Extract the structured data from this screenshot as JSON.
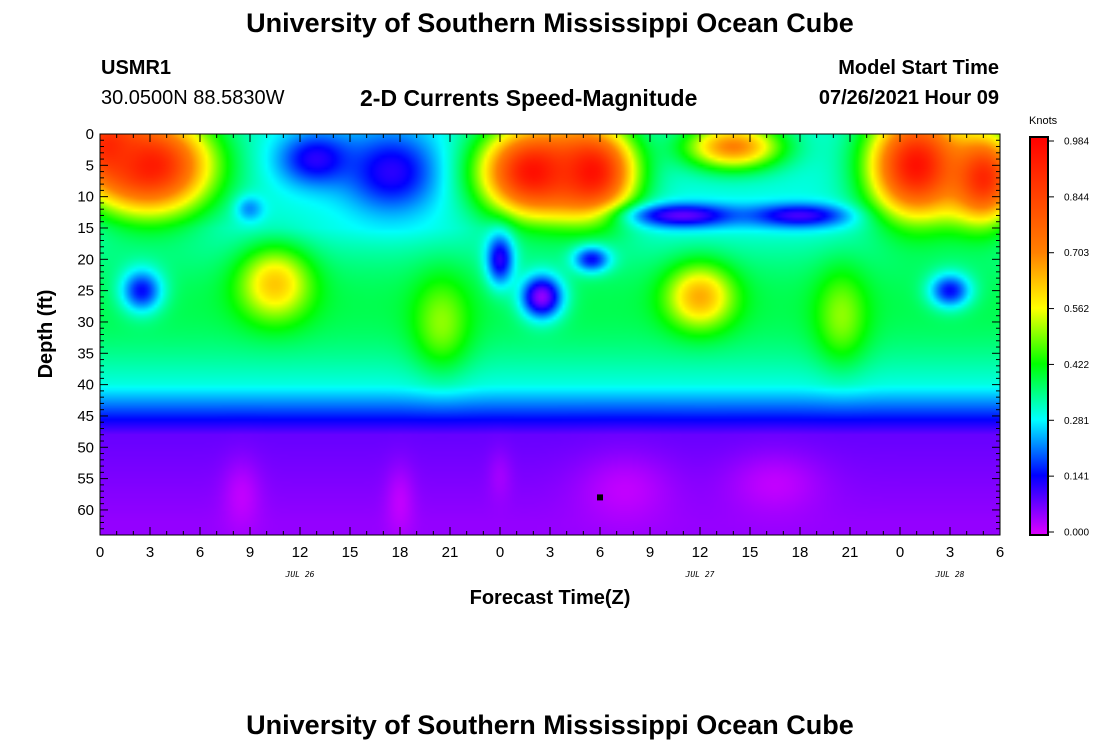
{
  "header": {
    "title_top": "University of Southern Mississippi Ocean Cube",
    "station": "USMR1",
    "coords": "30.0500N  88.5830W",
    "subtitle": "2-D Currents Speed-Magnitude",
    "model_label": "Model Start Time",
    "model_time": "07/26/2021 Hour 09",
    "title_bottom": "University of Southern Mississippi Ocean Cube"
  },
  "chart_data": {
    "type": "heatmap",
    "xlabel": "Forecast Time(Z)",
    "ylabel": "Depth (ft)",
    "x_tick_labels": [
      "0",
      "3",
      "6",
      "9",
      "12",
      "15",
      "18",
      "21",
      "0",
      "3",
      "6",
      "9",
      "12",
      "15",
      "18",
      "21",
      "0",
      "3",
      "6"
    ],
    "x_hours_range": [
      0,
      54
    ],
    "date_labels": [
      {
        "text": "JUL 26",
        "hour": 12
      },
      {
        "text": "JUL 27",
        "hour": 36
      },
      {
        "text": "JUL 28",
        "hour": 51
      }
    ],
    "y_ticks": [
      0,
      5,
      10,
      15,
      20,
      25,
      30,
      35,
      40,
      45,
      50,
      55,
      60
    ],
    "y_range": [
      0,
      64
    ],
    "colorbar": {
      "unit": "Knots",
      "ticks": [
        "0.984",
        "0.844",
        "0.703",
        "0.562",
        "0.422",
        "0.281",
        "0.141",
        "0.000"
      ],
      "range": [
        0,
        0.984
      ],
      "colors": [
        "#e000ff",
        "#0000ff",
        "#00ffff",
        "#00ff00",
        "#ffff00",
        "#ff8000",
        "#ff0000"
      ]
    },
    "marker": {
      "hour": 30,
      "depth": 58
    },
    "features": [
      {
        "hour": 3,
        "depth": 5,
        "value": 0.93,
        "sx": 2.6,
        "sy": 5.5
      },
      {
        "hour": 0.5,
        "depth": 2,
        "value": 0.9,
        "sx": 1.5,
        "sy": 4
      },
      {
        "hour": 13,
        "depth": 4,
        "value": 0.12,
        "sx": 1.6,
        "sy": 3
      },
      {
        "hour": 17.5,
        "depth": 6,
        "value": 0.12,
        "sx": 2,
        "sy": 4.5
      },
      {
        "hour": 9,
        "depth": 12,
        "value": 0.22,
        "sx": 0.6,
        "sy": 1.5
      },
      {
        "hour": 26,
        "depth": 6,
        "value": 0.95,
        "sx": 2.2,
        "sy": 5
      },
      {
        "hour": 29.5,
        "depth": 6,
        "value": 0.95,
        "sx": 1.8,
        "sy": 5
      },
      {
        "hour": 38,
        "depth": 2,
        "value": 0.7,
        "sx": 2,
        "sy": 2.5
      },
      {
        "hour": 35,
        "depth": 13,
        "value": 0.08,
        "sx": 2.2,
        "sy": 1.3
      },
      {
        "hour": 42,
        "depth": 13,
        "value": 0.1,
        "sx": 2.2,
        "sy": 1.3
      },
      {
        "hour": 49,
        "depth": 5,
        "value": 0.95,
        "sx": 2,
        "sy": 6
      },
      {
        "hour": 53,
        "depth": 7,
        "value": 0.9,
        "sx": 1.5,
        "sy": 5
      },
      {
        "hour": 2.5,
        "depth": 25,
        "value": 0.15,
        "sx": 0.9,
        "sy": 2.5
      },
      {
        "hour": 10.5,
        "depth": 24,
        "value": 0.62,
        "sx": 1.5,
        "sy": 4
      },
      {
        "hour": 20.5,
        "depth": 30,
        "value": 0.5,
        "sx": 1.2,
        "sy": 5
      },
      {
        "hour": 24,
        "depth": 20,
        "value": 0.12,
        "sx": 0.6,
        "sy": 3
      },
      {
        "hour": 26.5,
        "depth": 26,
        "value": 0.05,
        "sx": 0.9,
        "sy": 2.5
      },
      {
        "hour": 29.5,
        "depth": 20,
        "value": 0.15,
        "sx": 0.8,
        "sy": 1.5
      },
      {
        "hour": 36,
        "depth": 26,
        "value": 0.65,
        "sx": 1.4,
        "sy": 3.5
      },
      {
        "hour": 44.5,
        "depth": 29,
        "value": 0.5,
        "sx": 1.1,
        "sy": 5
      },
      {
        "hour": 51,
        "depth": 25,
        "value": 0.15,
        "sx": 0.9,
        "sy": 2
      },
      {
        "hour": 8.5,
        "depth": 58,
        "value": 0.02,
        "sx": 0.8,
        "sy": 4
      },
      {
        "hour": 18,
        "depth": 59,
        "value": 0.02,
        "sx": 0.6,
        "sy": 4
      },
      {
        "hour": 24,
        "depth": 55,
        "value": 0.04,
        "sx": 0.5,
        "sy": 3
      },
      {
        "hour": 31.5,
        "depth": 57,
        "value": 0.02,
        "sx": 2,
        "sy": 4
      },
      {
        "hour": 40.5,
        "depth": 56,
        "value": 0.02,
        "sx": 2,
        "sy": 3.5
      }
    ]
  }
}
